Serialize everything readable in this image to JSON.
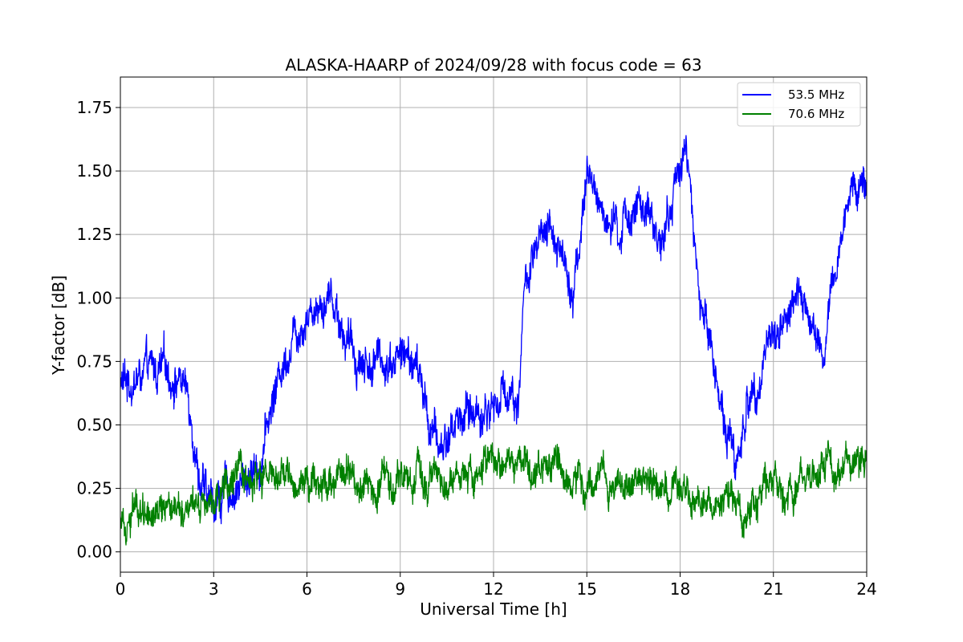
{
  "chart_data": {
    "type": "line",
    "title": "ALASKA-HAARP of 2024/09/28 with focus code = 63",
    "xlabel": "Universal Time [h]",
    "ylabel": "Y-factor [dB]",
    "xlim": [
      0,
      24
    ],
    "ylim": [
      -0.08,
      1.87
    ],
    "xticks": [
      0,
      3,
      6,
      9,
      12,
      15,
      18,
      21,
      24
    ],
    "xtick_labels": [
      "0",
      "3",
      "6",
      "9",
      "12",
      "15",
      "18",
      "21",
      "24"
    ],
    "yticks": [
      0.0,
      0.25,
      0.5,
      0.75,
      1.0,
      1.25,
      1.5,
      1.75
    ],
    "ytick_labels": [
      "0.00",
      "0.25",
      "0.50",
      "0.75",
      "1.00",
      "1.25",
      "1.50",
      "1.75"
    ],
    "grid": true,
    "legend_position": "top-right",
    "series": [
      {
        "name": "53.5 MHz",
        "color": "#0000ff",
        "noise": 0.07,
        "x": [
          0,
          0.5,
          1.0,
          1.5,
          2.0,
          2.3,
          2.5,
          2.8,
          3.0,
          3.5,
          4.0,
          4.5,
          5.0,
          5.5,
          6.0,
          6.5,
          6.8,
          7.2,
          7.5,
          8.0,
          8.5,
          9.0,
          9.5,
          10.0,
          10.3,
          10.8,
          11.2,
          11.6,
          12.0,
          12.5,
          12.8,
          13.0,
          13.5,
          14.0,
          14.3,
          14.6,
          15.0,
          15.5,
          16.0,
          16.5,
          17.0,
          17.5,
          17.8,
          18.0,
          18.2,
          18.5,
          19.0,
          19.5,
          19.8,
          20.2,
          20.7,
          21.0,
          21.5,
          22.0,
          22.3,
          22.6,
          23.0,
          23.5,
          24.0
        ],
        "y": [
          0.66,
          0.68,
          0.7,
          0.71,
          0.68,
          0.55,
          0.33,
          0.18,
          0.2,
          0.24,
          0.28,
          0.36,
          0.65,
          0.85,
          0.95,
          1.0,
          1.02,
          0.86,
          0.78,
          0.74,
          0.76,
          0.78,
          0.74,
          0.48,
          0.4,
          0.52,
          0.55,
          0.55,
          0.57,
          0.65,
          0.6,
          1.05,
          1.2,
          1.25,
          1.15,
          1.05,
          1.48,
          1.35,
          1.22,
          1.38,
          1.28,
          1.25,
          1.4,
          1.55,
          1.62,
          1.1,
          0.8,
          0.48,
          0.35,
          0.58,
          0.78,
          0.85,
          0.95,
          1.0,
          0.85,
          0.75,
          1.1,
          1.45,
          1.45
        ]
      },
      {
        "name": "70.6 MHz",
        "color": "#008000",
        "noise": 0.06,
        "x": [
          0,
          1,
          2,
          3,
          4,
          5,
          6,
          7,
          8,
          9,
          10,
          11,
          12,
          13,
          14,
          15,
          16,
          17,
          18,
          19,
          20,
          21,
          22,
          23,
          24
        ],
        "y": [
          0.15,
          0.19,
          0.2,
          0.24,
          0.27,
          0.29,
          0.28,
          0.31,
          0.29,
          0.29,
          0.28,
          0.31,
          0.33,
          0.33,
          0.31,
          0.3,
          0.27,
          0.26,
          0.24,
          0.17,
          0.18,
          0.24,
          0.28,
          0.33,
          0.36
        ]
      }
    ]
  }
}
